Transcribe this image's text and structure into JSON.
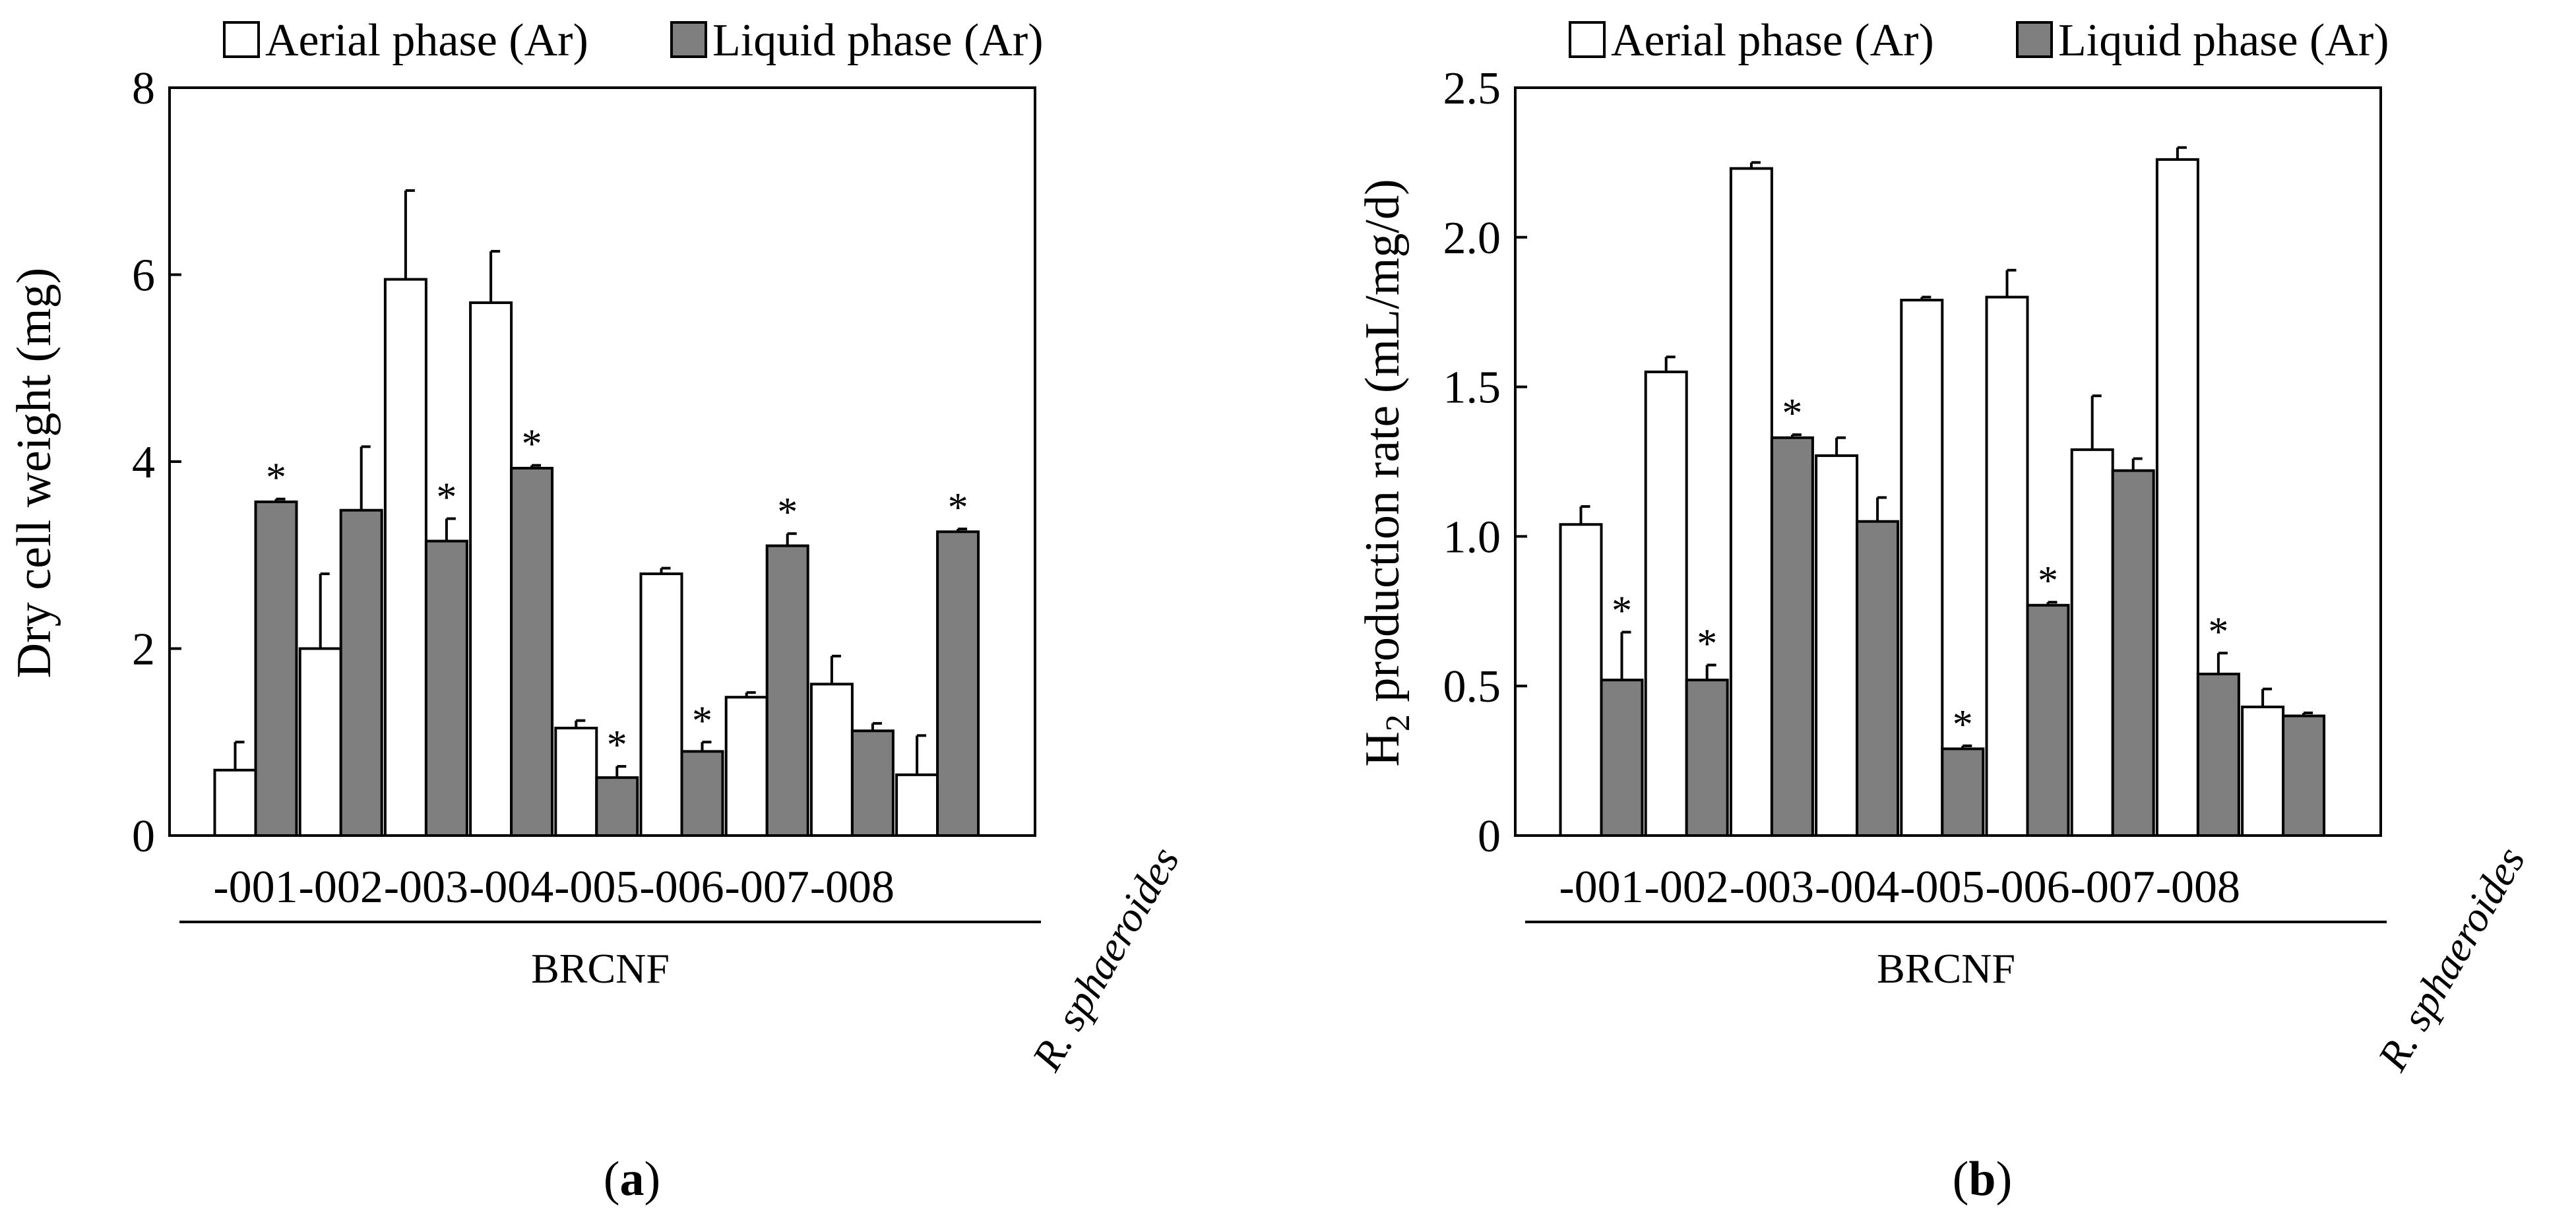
{
  "colors": {
    "aerial": "#ffffff",
    "liquid": "#7f7f7f",
    "stroke": "#000000"
  },
  "chart_data": [
    {
      "type": "bar",
      "panel": "(a)",
      "panel_letter": "a",
      "ylabel": "Dry cell weight  (mg)",
      "ylabel_main": "Dry cell weight  (mg)",
      "ylabel_sub": "",
      "ylabel_rest": "",
      "ylim": [
        0,
        8
      ],
      "yticks": [
        0,
        2,
        4,
        6,
        8
      ],
      "ytick_labels": [
        "0",
        "2",
        "4",
        "6",
        "8"
      ],
      "categories": [
        "-001",
        "-002",
        "-003",
        "-004",
        "-005",
        "-006",
        "-007",
        "-008",
        "R. sphaeroides"
      ],
      "group_label": "BRCNF",
      "reference_label": "R. sphaeroides",
      "series": [
        {
          "name": "Aerial phase (Ar)",
          "values": [
            0.7,
            2.0,
            5.95,
            5.7,
            1.15,
            2.8,
            1.48,
            1.62,
            0.65
          ],
          "errors": [
            0.3,
            0.8,
            0.95,
            0.55,
            0.08,
            0.06,
            0.05,
            0.3,
            0.42
          ],
          "significant": [
            false,
            false,
            false,
            false,
            false,
            false,
            false,
            false,
            false
          ]
        },
        {
          "name": "Liquid phase (Ar)",
          "values": [
            3.57,
            3.48,
            3.15,
            3.93,
            0.62,
            0.9,
            3.1,
            1.12,
            3.25
          ],
          "errors": [
            0.03,
            0.68,
            0.24,
            0.03,
            0.12,
            0.1,
            0.13,
            0.08,
            0.03
          ],
          "significant": [
            true,
            false,
            true,
            true,
            true,
            true,
            true,
            false,
            true
          ]
        }
      ]
    },
    {
      "type": "bar",
      "panel": "(b)",
      "panel_letter": "b",
      "ylabel": "H2 production rate (mL/mg/d)",
      "ylabel_main": "H",
      "ylabel_sub": "2",
      "ylabel_rest": " production rate (mL/mg/d)",
      "ylim": [
        0,
        2.5
      ],
      "yticks": [
        0,
        0.5,
        1.0,
        1.5,
        2.0,
        2.5
      ],
      "ytick_labels": [
        "0",
        "0.5",
        "1.0",
        "1.5",
        "2.0",
        "2.5"
      ],
      "categories": [
        "-001",
        "-002",
        "-003",
        "-004",
        "-005",
        "-006",
        "-007",
        "-008",
        "R. sphaeroides"
      ],
      "group_label": "BRCNF",
      "reference_label": "R. sphaeroides",
      "series": [
        {
          "name": "Aerial phase (Ar)",
          "values": [
            1.04,
            1.55,
            2.23,
            1.27,
            1.79,
            1.8,
            1.29,
            2.26,
            0.43
          ],
          "errors": [
            0.06,
            0.05,
            0.02,
            0.06,
            0.01,
            0.09,
            0.18,
            0.04,
            0.06
          ],
          "significant": [
            false,
            false,
            false,
            false,
            false,
            false,
            false,
            false,
            false
          ]
        },
        {
          "name": "Liquid phase (Ar)",
          "values": [
            0.52,
            0.52,
            1.33,
            1.05,
            0.29,
            0.77,
            1.22,
            0.54,
            0.4
          ],
          "errors": [
            0.16,
            0.05,
            0.01,
            0.08,
            0.01,
            0.01,
            0.04,
            0.07,
            0.01
          ],
          "significant": [
            true,
            true,
            true,
            false,
            true,
            true,
            false,
            true,
            false
          ]
        }
      ]
    }
  ]
}
